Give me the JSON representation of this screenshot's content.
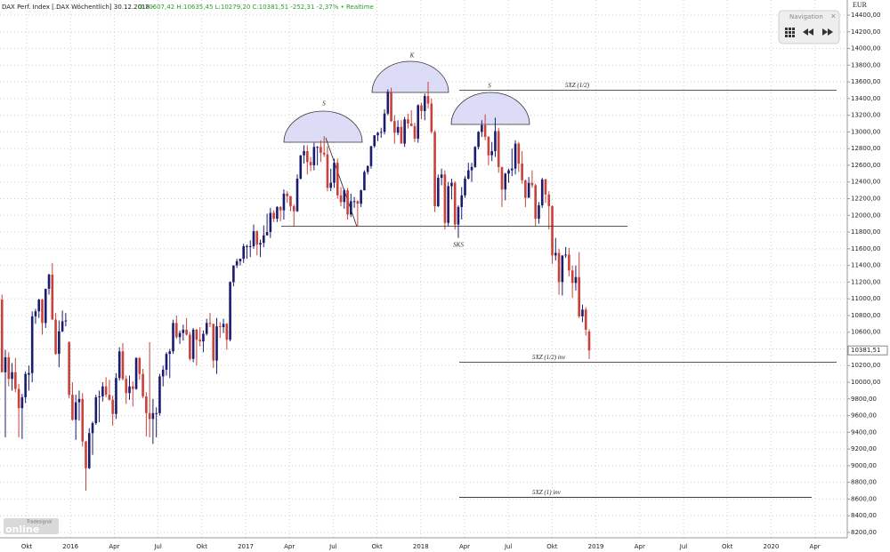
{
  "header": {
    "title": "DAX Perf. Index [.DAX Wöchentlich] 30.12.2018 - ",
    "quote": "O:10607,42 H:10635,45 L:10279,20 C:10381,51 -252,31 -2,37% • Realtime"
  },
  "navigation": {
    "title": "Navigation",
    "close": "×"
  },
  "logo": {
    "brand": "Tradesignal",
    "name": "online"
  },
  "chart_data": {
    "type": "candlestick",
    "currency": "EUR",
    "up_color": "#1c1c6e",
    "down_color": "#c8413a",
    "grid": true,
    "ylim": [
      8136,
      14581
    ],
    "yticks": [
      {
        "value": 8200,
        "label": "8200,00"
      },
      {
        "value": 8400,
        "label": "8400,00"
      },
      {
        "value": 8600,
        "label": "8600,00"
      },
      {
        "value": 8800,
        "label": "8800,00"
      },
      {
        "value": 9000,
        "label": "9000,00"
      },
      {
        "value": 9200,
        "label": "9200,00"
      },
      {
        "value": 9400,
        "label": "9400,00"
      },
      {
        "value": 9600,
        "label": "9600,00"
      },
      {
        "value": 9800,
        "label": "9800,00"
      },
      {
        "value": 10000,
        "label": "10000,00"
      },
      {
        "value": 10200,
        "label": "10200,00"
      },
      {
        "value": 10400,
        "label": "10400,00"
      },
      {
        "value": 10600,
        "label": "10600,00"
      },
      {
        "value": 10800,
        "label": "10800,00"
      },
      {
        "value": 11000,
        "label": "11000,00"
      },
      {
        "value": 11200,
        "label": "11200,00"
      },
      {
        "value": 11400,
        "label": "11400,00"
      },
      {
        "value": 11600,
        "label": "11600,00"
      },
      {
        "value": 11800,
        "label": "11800,00"
      },
      {
        "value": 12000,
        "label": "12000,00"
      },
      {
        "value": 12200,
        "label": "12200,00"
      },
      {
        "value": 12400,
        "label": "12400,00"
      },
      {
        "value": 12600,
        "label": "12600,00"
      },
      {
        "value": 12800,
        "label": "12800,00"
      },
      {
        "value": 13000,
        "label": "13000,00"
      },
      {
        "value": 13200,
        "label": "13200,00"
      },
      {
        "value": 13400,
        "label": "13400,00"
      },
      {
        "value": 13600,
        "label": "13600,00"
      },
      {
        "value": 13800,
        "label": "13800,00"
      },
      {
        "value": 14000,
        "label": "14000,00"
      },
      {
        "value": 14200,
        "label": "14200,00"
      },
      {
        "value": 14400,
        "label": "14400,00"
      }
    ],
    "x_tick_labels": [
      "Okt",
      "2016",
      "Apr",
      "Jul",
      "Okt",
      "2017",
      "Apr",
      "Jul",
      "Okt",
      "2018",
      "Apr",
      "Jul",
      "Okt",
      "2019",
      "Apr",
      "Jul",
      "Okt",
      "2020",
      "Apr"
    ],
    "last_price": {
      "value": 10381.51,
      "label": "10381,51"
    },
    "levels": [
      {
        "label": "5XZ (1/2)",
        "value": 13500
      },
      {
        "value": 11870
      },
      {
        "label": "5XZ (1/2) inv",
        "value": 10240
      },
      {
        "label": "5XZ (1) inv",
        "value": 8620
      }
    ],
    "pattern_labels": [
      "S",
      "K",
      "S",
      "SKS"
    ],
    "values": [
      [
        10990,
        11050,
        10120,
        10120
      ],
      [
        10120,
        10390,
        9340,
        10300
      ],
      [
        10300,
        10360,
        9950,
        10040
      ],
      [
        10040,
        10230,
        9900,
        10120
      ],
      [
        10120,
        10290,
        9880,
        9920
      ],
      [
        9920,
        9980,
        9340,
        9690
      ],
      [
        9690,
        9860,
        9320,
        9820
      ],
      [
        9820,
        10130,
        9750,
        10100
      ],
      [
        10090,
        10200,
        9900,
        10110
      ],
      [
        10110,
        10850,
        10000,
        10790
      ],
      [
        10790,
        10880,
        10700,
        10850
      ],
      [
        10850,
        11000,
        10770,
        10990
      ],
      [
        10990,
        11000,
        10570,
        10710
      ],
      [
        10710,
        11120,
        10650,
        11120
      ],
      [
        11120,
        11300,
        11050,
        11290
      ],
      [
        11290,
        11430,
        10760,
        10750
      ],
      [
        10750,
        10830,
        10330,
        10340
      ],
      [
        10340,
        10740,
        10180,
        10610
      ],
      [
        10610,
        10860,
        10600,
        10730
      ],
      [
        10730,
        10830,
        10670,
        10740
      ],
      [
        10480,
        10490,
        9810,
        9850
      ],
      [
        9850,
        10000,
        9540,
        9550
      ],
      [
        9550,
        9850,
        9310,
        9760
      ],
      [
        9760,
        9900,
        9540,
        9800
      ],
      [
        9800,
        9870,
        9230,
        9290
      ],
      [
        9290,
        9300,
        8700,
        8970
      ],
      [
        8970,
        9450,
        8960,
        9390
      ],
      [
        9390,
        9530,
        9130,
        9510
      ],
      [
        9510,
        9850,
        9490,
        9820
      ],
      [
        9820,
        9900,
        9520,
        9830
      ],
      [
        9830,
        10000,
        9770,
        9950
      ],
      [
        9950,
        10060,
        9820,
        9850
      ],
      [
        9850,
        10030,
        9780,
        9790
      ],
      [
        9790,
        9840,
        9480,
        9620
      ],
      [
        9620,
        10110,
        9560,
        10050
      ],
      [
        10050,
        10420,
        10020,
        10370
      ],
      [
        10370,
        10470,
        10020,
        10040
      ],
      [
        10040,
        10080,
        9740,
        9870
      ],
      [
        9870,
        10080,
        9790,
        9950
      ],
      [
        9950,
        10010,
        9710,
        9920
      ],
      [
        9920,
        10300,
        9910,
        10290
      ],
      [
        10290,
        10300,
        10030,
        10100
      ],
      [
        10100,
        10160,
        9810,
        9830
      ],
      [
        9830,
        9880,
        9350,
        9630
      ],
      [
        9630,
        10480,
        9340,
        9560
      ],
      [
        9560,
        9800,
        9260,
        9630
      ],
      [
        9630,
        9700,
        9340,
        9630
      ],
      [
        9630,
        10100,
        9600,
        10070
      ],
      [
        10070,
        10200,
        9950,
        10150
      ],
      [
        10150,
        10360,
        10080,
        10340
      ],
      [
        10340,
        10400,
        10050,
        10370
      ],
      [
        10370,
        10750,
        10340,
        10710
      ],
      [
        10710,
        10800,
        10520,
        10540
      ],
      [
        10540,
        10620,
        10460,
        10590
      ],
      [
        10590,
        10690,
        10500,
        10630
      ],
      [
        10630,
        10770,
        10560,
        10570
      ],
      [
        10570,
        10600,
        10260,
        10280
      ],
      [
        10280,
        10650,
        10240,
        10630
      ],
      [
        10630,
        10640,
        10200,
        10510
      ],
      [
        10510,
        10660,
        10430,
        10490
      ],
      [
        10490,
        10620,
        10360,
        10580
      ],
      [
        10580,
        10760,
        10560,
        10710
      ],
      [
        10710,
        10830,
        10660,
        10700
      ],
      [
        10700,
        10700,
        10170,
        10260
      ],
      [
        10260,
        10770,
        10100,
        10670
      ],
      [
        10670,
        10720,
        10530,
        10660
      ],
      [
        10660,
        10760,
        10590,
        10700
      ],
      [
        10700,
        10710,
        10390,
        10510
      ],
      [
        10510,
        11210,
        10490,
        11200
      ],
      [
        11200,
        11400,
        11150,
        11400
      ],
      [
        11400,
        11480,
        11370,
        11450
      ],
      [
        11450,
        11480,
        11400,
        11480
      ],
      [
        11480,
        11660,
        11430,
        11630
      ],
      [
        11630,
        11650,
        11480,
        11630
      ],
      [
        11630,
        11700,
        11500,
        11630
      ],
      [
        11630,
        11890,
        11600,
        11810
      ],
      [
        11810,
        11820,
        11520,
        11650
      ],
      [
        11650,
        11710,
        11500,
        11670
      ],
      [
        11670,
        11880,
        11620,
        11760
      ],
      [
        11760,
        12020,
        11760,
        11800
      ],
      [
        11800,
        12090,
        11730,
        12030
      ],
      [
        12030,
        12060,
        11920,
        11960
      ],
      [
        11960,
        12110,
        11920,
        12100
      ],
      [
        12100,
        12110,
        11930,
        12060
      ],
      [
        12060,
        12310,
        11950,
        12260
      ],
      [
        12260,
        12290,
        12150,
        12230
      ],
      [
        12230,
        12230,
        12050,
        12110
      ],
      [
        12110,
        12130,
        11870,
        12050
      ],
      [
        12050,
        12490,
        12040,
        12440
      ],
      [
        12440,
        12720,
        12430,
        12720
      ],
      [
        12720,
        12840,
        12620,
        12770
      ],
      [
        12770,
        12840,
        12490,
        12640
      ],
      [
        12640,
        12700,
        12530,
        12600
      ],
      [
        12600,
        12870,
        12540,
        12820
      ],
      [
        12820,
        12830,
        12600,
        12820
      ],
      [
        12820,
        12900,
        12640,
        12750
      ],
      [
        12750,
        12950,
        12700,
        12730
      ],
      [
        12730,
        12830,
        12290,
        12330
      ],
      [
        12330,
        12560,
        12290,
        12390
      ],
      [
        12390,
        12680,
        12330,
        12630
      ],
      [
        12630,
        12680,
        12200,
        12240
      ],
      [
        12240,
        12340,
        12110,
        12160
      ],
      [
        12160,
        12320,
        12080,
        12300
      ],
      [
        12300,
        12330,
        11950,
        12010
      ],
      [
        12010,
        12260,
        11980,
        12170
      ],
      [
        12170,
        12220,
        12090,
        12170
      ],
      [
        12170,
        12180,
        11870,
        12140
      ],
      [
        12140,
        12310,
        12100,
        12300
      ],
      [
        12300,
        12540,
        12300,
        12520
      ],
      [
        12520,
        12600,
        12490,
        12590
      ],
      [
        12590,
        12830,
        12560,
        12830
      ],
      [
        12830,
        12960,
        12810,
        12960
      ],
      [
        12960,
        13000,
        12890,
        12990
      ],
      [
        12990,
        13050,
        12930,
        13000
      ],
      [
        13000,
        13270,
        12970,
        13220
      ],
      [
        13220,
        13510,
        13200,
        13480
      ],
      [
        13480,
        13530,
        13120,
        13130
      ],
      [
        13130,
        13200,
        12860,
        12990
      ],
      [
        12990,
        13140,
        12960,
        13060
      ],
      [
        13060,
        13140,
        12870,
        12860
      ],
      [
        12860,
        13180,
        12820,
        13150
      ],
      [
        13150,
        13220,
        13040,
        13100
      ],
      [
        13100,
        13260,
        13070,
        13070
      ],
      [
        13070,
        13110,
        12880,
        12920
      ],
      [
        12920,
        13330,
        12870,
        13320
      ],
      [
        13320,
        13350,
        13150,
        13250
      ],
      [
        13250,
        13460,
        13140,
        13430
      ],
      [
        13430,
        13600,
        13280,
        13340
      ],
      [
        13340,
        13400,
        12980,
        13000
      ],
      [
        13000,
        13020,
        12040,
        12110
      ],
      [
        12110,
        12490,
        12100,
        12450
      ],
      [
        12450,
        12560,
        12360,
        12490
      ],
      [
        12490,
        12540,
        11830,
        11910
      ],
      [
        11910,
        12400,
        11870,
        12350
      ],
      [
        12350,
        12440,
        12190,
        12390
      ],
      [
        12390,
        12410,
        11830,
        11890
      ],
      [
        11890,
        12120,
        11730,
        12100
      ],
      [
        12100,
        12340,
        11950,
        12240
      ],
      [
        12240,
        12470,
        12210,
        12440
      ],
      [
        12440,
        12630,
        12430,
        12540
      ],
      [
        12540,
        12630,
        12400,
        12580
      ],
      [
        12580,
        12830,
        12570,
        12820
      ],
      [
        12820,
        13010,
        12790,
        13000
      ],
      [
        13000,
        13140,
        12940,
        13080
      ],
      [
        13080,
        13210,
        12900,
        12940
      ],
      [
        12940,
        12950,
        12600,
        12720
      ],
      [
        12720,
        12880,
        12650,
        12770
      ],
      [
        12770,
        13170,
        12700,
        13010
      ],
      [
        13010,
        13050,
        12510,
        12580
      ],
      [
        12580,
        12580,
        12100,
        12310
      ],
      [
        12310,
        12510,
        12180,
        12500
      ],
      [
        12500,
        12560,
        12390,
        12540
      ],
      [
        12540,
        12800,
        12470,
        12560
      ],
      [
        12560,
        12900,
        12490,
        12860
      ],
      [
        12860,
        12880,
        12520,
        12620
      ],
      [
        12620,
        12770,
        12380,
        12420
      ],
      [
        12420,
        12430,
        12100,
        12210
      ],
      [
        12210,
        12460,
        12210,
        12390
      ],
      [
        12390,
        12540,
        12330,
        12360
      ],
      [
        12360,
        12380,
        11870,
        11960
      ],
      [
        11960,
        12160,
        11900,
        12120
      ],
      [
        12120,
        12450,
        12090,
        12430
      ],
      [
        12430,
        12440,
        12150,
        12250
      ],
      [
        12250,
        12290,
        11830,
        12110
      ],
      [
        12110,
        12120,
        11420,
        11520
      ],
      [
        11520,
        11730,
        11460,
        11550
      ],
      [
        11550,
        11600,
        11050,
        11200
      ],
      [
        11200,
        11520,
        11040,
        11520
      ],
      [
        11520,
        11620,
        11490,
        11530
      ],
      [
        11530,
        11610,
        11270,
        11340
      ],
      [
        11340,
        11400,
        11010,
        11190
      ],
      [
        11190,
        11400,
        11100,
        11260
      ],
      [
        11260,
        11560,
        10770,
        10790
      ],
      [
        10790,
        10930,
        10720,
        10870
      ],
      [
        10870,
        10900,
        10560,
        10630
      ],
      [
        10607.42,
        10635.45,
        10279.2,
        10381.51
      ]
    ]
  }
}
